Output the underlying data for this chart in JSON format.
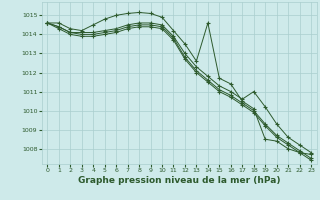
{
  "background_color": "#ceeaea",
  "grid_color": "#aacece",
  "line_color": "#2d5a2d",
  "marker": "+",
  "xlabel": "Graphe pression niveau de la mer (hPa)",
  "xlabel_fontsize": 6.5,
  "ytick_labels": [
    "1008",
    "1009",
    "1010",
    "1011",
    "1012",
    "1013",
    "1014",
    "1015"
  ],
  "yticks": [
    1008,
    1009,
    1010,
    1011,
    1012,
    1013,
    1014,
    1015
  ],
  "xticks": [
    0,
    1,
    2,
    3,
    4,
    5,
    6,
    7,
    8,
    9,
    10,
    11,
    12,
    13,
    14,
    15,
    16,
    17,
    18,
    19,
    20,
    21,
    22,
    23
  ],
  "ylim": [
    1007.2,
    1015.7
  ],
  "xlim": [
    -0.5,
    23.5
  ],
  "series": [
    [
      1014.6,
      1014.6,
      1014.3,
      1014.2,
      1014.5,
      1014.8,
      1015.0,
      1015.1,
      1015.15,
      1015.1,
      1014.9,
      1014.2,
      1013.5,
      1012.6,
      1014.6,
      1011.7,
      1011.4,
      1010.5,
      1010.1,
      1008.5,
      1008.4,
      1008.0,
      1007.8,
      1007.7
    ],
    [
      1014.6,
      1014.4,
      1014.1,
      1014.1,
      1014.1,
      1014.2,
      1014.3,
      1014.5,
      1014.6,
      1014.6,
      1014.5,
      1013.9,
      1013.0,
      1012.3,
      1011.8,
      1011.3,
      1011.0,
      1010.6,
      1011.0,
      1010.2,
      1009.3,
      1008.6,
      1008.2,
      1007.8
    ],
    [
      1014.6,
      1014.4,
      1014.1,
      1014.0,
      1014.0,
      1014.1,
      1014.2,
      1014.4,
      1014.5,
      1014.5,
      1014.4,
      1013.8,
      1012.8,
      1012.1,
      1011.6,
      1011.1,
      1010.8,
      1010.4,
      1010.0,
      1009.3,
      1008.7,
      1008.3,
      1007.9,
      1007.5
    ],
    [
      1014.6,
      1014.3,
      1014.0,
      1013.9,
      1013.9,
      1014.0,
      1014.1,
      1014.3,
      1014.4,
      1014.4,
      1014.3,
      1013.7,
      1012.7,
      1012.0,
      1011.5,
      1011.0,
      1010.7,
      1010.3,
      1009.9,
      1009.2,
      1008.6,
      1008.2,
      1007.8,
      1007.4
    ]
  ]
}
